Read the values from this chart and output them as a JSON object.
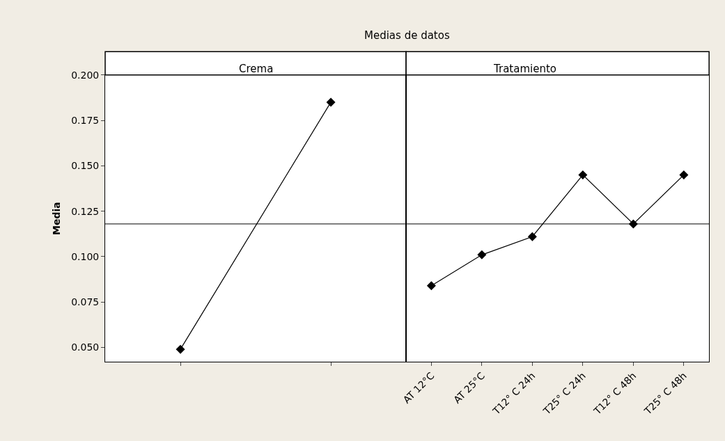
{
  "chart_data": [
    {
      "type": "line",
      "title": "Crema",
      "annotations": [
        "Medias de datos"
      ],
      "ylabel": "Media",
      "categories": [
        null,
        null
      ],
      "series": [
        {
          "color": "#000000",
          "values": [
            0.049,
            0.185
          ]
        }
      ],
      "ylim": [
        0.042,
        0.2
      ],
      "yticks": [
        {
          "value": 0.05,
          "label": "0.050"
        },
        {
          "value": 0.075,
          "label": "0.075"
        },
        {
          "value": 0.1,
          "label": "0.100"
        },
        {
          "value": 0.125,
          "label": "0.125"
        },
        {
          "value": 0.15,
          "label": "0.150"
        },
        {
          "value": 0.175,
          "label": "0.175"
        },
        {
          "value": 0.2,
          "label": "0.200"
        }
      ],
      "ref_lines": [
        {
          "axis": "y",
          "value": 0.118,
          "label": null,
          "color": "#000000"
        }
      ],
      "marker": "diamond",
      "line_style": "solid",
      "grid": false
    },
    {
      "type": "line",
      "title": "Tratamiento",
      "categories": [
        "AT 12°C",
        "AT 25°C",
        "T12° C 24h",
        "T25° C 24h",
        "T12° C 48h",
        "T25° C 48h"
      ],
      "series": [
        {
          "color": "#000000",
          "values": [
            0.084,
            0.101,
            0.111,
            0.145,
            0.118,
            0.145
          ]
        }
      ],
      "ylim": [
        0.042,
        0.2
      ],
      "ref_lines": [
        {
          "axis": "y",
          "value": 0.118,
          "label": null,
          "color": "#000000"
        }
      ],
      "marker": "diamond",
      "line_style": "solid",
      "grid": false,
      "tick_labels": "x"
    }
  ]
}
